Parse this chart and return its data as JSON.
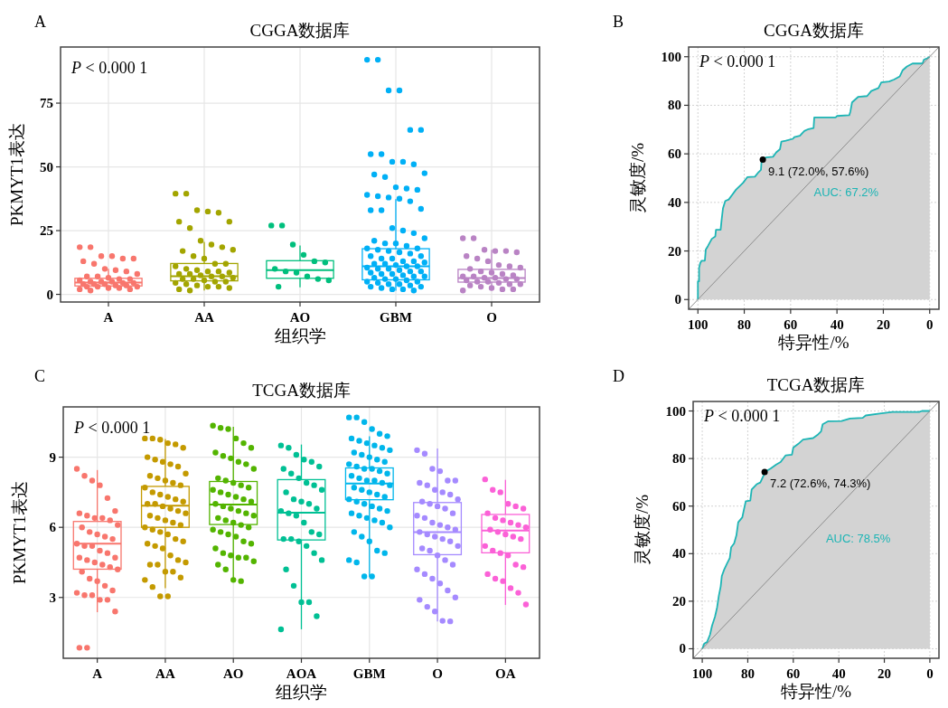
{
  "chart_data": [
    {
      "type": "box",
      "title": "CGGA数据库",
      "xlabel": "组织学",
      "ylabel": "PKMYT1表达",
      "categories": [
        "A",
        "AA",
        "AO",
        "GBM",
        "O"
      ],
      "colors": [
        "#F8766D",
        "#A3A500",
        "#00BF7D",
        "#00B0F6",
        "#B983C4"
      ],
      "boxes": [
        {
          "low": 1.5,
          "q1": 3.3,
          "median": 4.6,
          "q3": 6.3,
          "high": 10
        },
        {
          "low": 1.5,
          "q1": 5.3,
          "median": 7.1,
          "q3": 12.1,
          "high": 20.6
        },
        {
          "low": 2.8,
          "q1": 6.3,
          "median": 9.5,
          "q3": 13.2,
          "high": 19.2
        },
        {
          "low": 1.4,
          "q1": 5.7,
          "median": 11,
          "q3": 17.9,
          "high": 37.3
        },
        {
          "low": 1.5,
          "q1": 4.8,
          "median": 6.4,
          "q3": 9.8,
          "high": 17.5
        }
      ],
      "ylim": [
        -3,
        97
      ],
      "yticks": [
        0,
        25,
        50,
        75
      ],
      "grid": true,
      "annotations": [
        "A",
        "P < 0.000 1"
      ],
      "series": [
        {
          "type": "scatter",
          "color": "#F8766D",
          "x": [
            "A",
            "A",
            "A",
            "A",
            "A",
            "A",
            "A",
            "A",
            "A",
            "A",
            "A",
            "A",
            "A",
            "A",
            "A",
            "A",
            "A",
            "A",
            "A",
            "A",
            "A",
            "A",
            "A",
            "A",
            "A",
            "A",
            "A",
            "A",
            "A",
            "A",
            "A",
            "A",
            "A",
            "A",
            "A",
            "A"
          ],
          "values": [
            18.5,
            18.5,
            15,
            15,
            14,
            14,
            13,
            12,
            10,
            9.5,
            9,
            8,
            7,
            7,
            6.5,
            6,
            6,
            5.5,
            5,
            5,
            5,
            4.5,
            4.5,
            4,
            4,
            4,
            3.5,
            3.5,
            3,
            3,
            3,
            2.5,
            2.5,
            2,
            2,
            1.5
          ]
        },
        {
          "type": "scatter",
          "color": "#A3A500",
          "x": [
            "AA",
            "AA",
            "AA",
            "AA",
            "AA",
            "AA",
            "AA",
            "AA",
            "AA",
            "AA",
            "AA",
            "AA",
            "AA",
            "AA",
            "AA",
            "AA",
            "AA",
            "AA",
            "AA",
            "AA",
            "AA",
            "AA",
            "AA",
            "AA",
            "AA",
            "AA",
            "AA",
            "AA",
            "AA",
            "AA",
            "AA",
            "AA",
            "AA",
            "AA",
            "AA",
            "AA",
            "AA",
            "AA",
            "AA",
            "AA",
            "AA",
            "AA"
          ],
          "values": [
            39.5,
            39.5,
            33,
            32.5,
            32,
            28.5,
            28.5,
            26,
            21,
            19.5,
            18.5,
            17.5,
            17,
            15,
            14,
            12,
            12,
            11,
            10,
            9.5,
            9,
            9,
            8.5,
            8,
            8,
            7.5,
            7,
            7,
            6.5,
            6,
            6,
            5.5,
            5,
            5,
            4.5,
            4,
            3.5,
            3,
            3,
            2.5,
            2,
            1.5
          ]
        },
        {
          "type": "scatter",
          "color": "#00BF7D",
          "x": [
            "AO",
            "AO",
            "AO",
            "AO",
            "AO",
            "AO",
            "AO",
            "AO",
            "AO",
            "AO",
            "AO",
            "AO",
            "AO"
          ],
          "values": [
            27,
            27,
            19.5,
            15.5,
            13,
            12.5,
            10,
            9,
            8.5,
            7,
            6,
            5.5,
            3
          ]
        },
        {
          "type": "scatter",
          "color": "#00B0F6",
          "x": [
            "GBM",
            "GBM",
            "GBM",
            "GBM",
            "GBM",
            "GBM",
            "GBM",
            "GBM",
            "GBM",
            "GBM",
            "GBM",
            "GBM",
            "GBM",
            "GBM",
            "GBM",
            "GBM",
            "GBM",
            "GBM",
            "GBM",
            "GBM",
            "GBM",
            "GBM",
            "GBM",
            "GBM",
            "GBM",
            "GBM",
            "GBM",
            "GBM",
            "GBM",
            "GBM",
            "GBM",
            "GBM",
            "GBM",
            "GBM",
            "GBM",
            "GBM",
            "GBM",
            "GBM",
            "GBM",
            "GBM",
            "GBM",
            "GBM",
            "GBM",
            "GBM",
            "GBM",
            "GBM",
            "GBM",
            "GBM",
            "GBM",
            "GBM",
            "GBM",
            "GBM",
            "GBM",
            "GBM",
            "GBM",
            "GBM",
            "GBM",
            "GBM",
            "GBM",
            "GBM",
            "GBM",
            "GBM",
            "GBM",
            "GBM",
            "GBM",
            "GBM",
            "GBM",
            "GBM",
            "GBM",
            "GBM",
            "GBM",
            "GBM",
            "GBM",
            "GBM",
            "GBM",
            "GBM",
            "GBM",
            "GBM",
            "GBM"
          ],
          "values": [
            92,
            92,
            80,
            80,
            64.5,
            64.5,
            55,
            55,
            52,
            52,
            51,
            47.5,
            47,
            46,
            42,
            41.5,
            41,
            39,
            38.5,
            38,
            37.5,
            36.5,
            33.5,
            33,
            33,
            26,
            25,
            24,
            22,
            21,
            20,
            20,
            19,
            18,
            18,
            17.5,
            17,
            16.5,
            16,
            15,
            15,
            14,
            14,
            13,
            13,
            12.5,
            12,
            12,
            11.5,
            11,
            11,
            10.5,
            10,
            10,
            9.5,
            9,
            9,
            8.5,
            8,
            8,
            7.5,
            7,
            7,
            6.5,
            6,
            6,
            5.5,
            5,
            5,
            4.5,
            4,
            4,
            3.5,
            3,
            3,
            2.5,
            2,
            2,
            1.5
          ]
        },
        {
          "type": "scatter",
          "color": "#B983C4",
          "x": [
            "O",
            "O",
            "O",
            "O",
            "O",
            "O",
            "O",
            "O",
            "O",
            "O",
            "O",
            "O",
            "O",
            "O",
            "O",
            "O",
            "O",
            "O",
            "O",
            "O",
            "O",
            "O",
            "O",
            "O",
            "O",
            "O",
            "O",
            "O",
            "O",
            "O",
            "O",
            "O",
            "O",
            "O",
            "O"
          ],
          "values": [
            22,
            22,
            17.5,
            17,
            17,
            16.5,
            15,
            14,
            13,
            11.5,
            11,
            10.5,
            10,
            9,
            8.5,
            8,
            7.5,
            7,
            7,
            6.5,
            6.5,
            6,
            6,
            5.5,
            5,
            5,
            4.5,
            4,
            4,
            3.5,
            3,
            2.5,
            2,
            2,
            1.5
          ]
        }
      ]
    },
    {
      "type": "area",
      "title": "CGGA数据库",
      "xlabel": "特异性/%",
      "ylabel": "灵敏度/%",
      "xlim": [
        104,
        -4
      ],
      "ylim": [
        -4,
        104
      ],
      "xticks": [
        100,
        80,
        60,
        40,
        20,
        0
      ],
      "yticks": [
        0,
        20,
        40,
        60,
        80,
        100
      ],
      "grid": true,
      "annotations": [
        "B",
        "P < 0.000 1",
        "AUC: 67.2%",
        {
          "text": "9.1 (72.0%, 57.6%)",
          "x": 72.0,
          "y": 57.6
        }
      ],
      "series": [
        {
          "type": "area",
          "color": "#1DB5B5",
          "x": [
            100,
            100,
            99.5,
            99.5,
            99,
            98.4,
            97,
            96.6,
            95.7,
            94,
            92.5,
            92.2,
            90.2,
            89.8,
            89.2,
            88.2,
            86.7,
            85,
            83.6,
            81.8,
            80.5,
            78.7,
            75.4,
            73.8,
            72.8,
            72.6,
            72,
            70.7,
            67.6,
            66.2,
            64.6,
            64,
            62.1,
            59,
            58.4,
            56,
            54.1,
            52.3,
            50.1,
            49.8,
            40.6,
            40,
            34.7,
            34.2,
            33.5,
            30.8,
            27,
            25.2,
            22.1,
            20.9,
            17.5,
            15.4,
            12.9,
            11.7,
            9.8,
            7.4,
            3.1,
            2.5,
            0.9,
            0
          ],
          "values": [
            0,
            7.5,
            7.5,
            13,
            15,
            16,
            16,
            20.6,
            22,
            25,
            26,
            28.7,
            28.7,
            32.5,
            37.5,
            40.6,
            41.2,
            43.4,
            45.2,
            46.9,
            48.1,
            50.4,
            50.6,
            52.5,
            53.4,
            56.2,
            57.6,
            58.5,
            58.8,
            60.6,
            61.9,
            65,
            65.4,
            66.2,
            66.9,
            67.5,
            69.4,
            70.2,
            70.6,
            75,
            75,
            75.6,
            75.9,
            77.5,
            81.2,
            83.5,
            83.8,
            85.9,
            87.1,
            89.4,
            89.8,
            90.6,
            91.9,
            94.4,
            96,
            97.2,
            97.2,
            98.8,
            99.4,
            100
          ]
        },
        {
          "type": "line",
          "color": "#8C8C8C",
          "x": [
            104,
            -4
          ],
          "values": [
            -4,
            104
          ]
        },
        {
          "type": "scatter",
          "color": "#000000",
          "x": [
            72.0
          ],
          "values": [
            57.6
          ]
        }
      ]
    },
    {
      "type": "box",
      "title": "TCGA数据库",
      "xlabel": "组织学",
      "ylabel": "PKMYT1表达",
      "categories": [
        "A",
        "AA",
        "AO",
        "AOA",
        "GBM",
        "O",
        "OA"
      ],
      "colors": [
        "#F8766D",
        "#C49A00",
        "#53B400",
        "#00C094",
        "#00B6EB",
        "#A58AFF",
        "#FB61D7"
      ],
      "boxes": [
        {
          "low": 2.37,
          "q1": 4.21,
          "median": 5.3,
          "q3": 6.25,
          "high": 8.45
        },
        {
          "low": 3.4,
          "q1": 6.0,
          "median": 6.93,
          "q3": 7.75,
          "high": 9.78
        },
        {
          "low": 3.7,
          "q1": 6.12,
          "median": 6.97,
          "q3": 7.96,
          "high": 10.3
        },
        {
          "low": 1.64,
          "q1": 5.46,
          "median": 6.63,
          "q3": 8.04,
          "high": 9.54
        },
        {
          "low": 3.88,
          "q1": 7.18,
          "median": 7.87,
          "q3": 8.54,
          "high": 9.89
        },
        {
          "low": 1.98,
          "q1": 4.83,
          "median": 5.79,
          "q3": 7.06,
          "high": 9.37
        },
        {
          "low": 2.68,
          "q1": 4.91,
          "median": 5.86,
          "q3": 6.55,
          "high": 8.03
        }
      ],
      "ylim": [
        0.4,
        11.15
      ],
      "yticks": [
        3,
        6,
        9
      ],
      "grid": true,
      "annotations": [
        "C",
        "P < 0.000 1"
      ],
      "series": [
        {
          "type": "scatter",
          "color": "#F8766D",
          "x": [
            "A",
            "A",
            "A",
            "A",
            "A",
            "A",
            "A",
            "A",
            "A",
            "A",
            "A",
            "A",
            "A",
            "A",
            "A",
            "A",
            "A",
            "A",
            "A",
            "A",
            "A",
            "A",
            "A",
            "A",
            "A",
            "A",
            "A",
            "A",
            "A",
            "A",
            "A",
            "A",
            "A",
            "A",
            "A",
            "A",
            "A",
            "A",
            "A",
            "A",
            "A",
            "A"
          ],
          "values": [
            8.5,
            8.2,
            8,
            7.8,
            7.25,
            6.7,
            6.6,
            6.5,
            6.4,
            6.4,
            6.3,
            6.1,
            6.0,
            5.8,
            5.7,
            5.6,
            5.5,
            5.3,
            5.2,
            5.2,
            5.0,
            4.9,
            4.7,
            4.7,
            4.6,
            4.5,
            4.4,
            4.3,
            4.2,
            4.1,
            3.8,
            3.7,
            3.5,
            3.3,
            3.2,
            3.1,
            3.1,
            2.9,
            2.9,
            2.4,
            0.85,
            0.85
          ]
        },
        {
          "type": "scatter",
          "color": "#C49A00",
          "x": [
            "AA",
            "AA",
            "AA",
            "AA",
            "AA",
            "AA",
            "AA",
            "AA",
            "AA",
            "AA",
            "AA",
            "AA",
            "AA",
            "AA",
            "AA",
            "AA",
            "AA",
            "AA",
            "AA",
            "AA",
            "AA",
            "AA",
            "AA",
            "AA",
            "AA",
            "AA",
            "AA",
            "AA",
            "AA",
            "AA",
            "AA",
            "AA",
            "AA",
            "AA",
            "AA",
            "AA",
            "AA",
            "AA",
            "AA",
            "AA",
            "AA",
            "AA",
            "AA",
            "AA",
            "AA",
            "AA",
            "AA",
            "AA",
            "AA",
            "AA",
            "AA",
            "AA",
            "AA",
            "AA",
            "AA"
          ],
          "values": [
            9.8,
            9.8,
            9.75,
            9.6,
            9.55,
            9.4,
            9.0,
            8.9,
            8.8,
            8.7,
            8.6,
            8.3,
            8.2,
            8.1,
            8.0,
            7.9,
            7.8,
            7.7,
            7.5,
            7.4,
            7.3,
            7.2,
            7.1,
            7.0,
            7.0,
            6.9,
            6.8,
            6.7,
            6.6,
            6.5,
            6.4,
            6.3,
            6.2,
            6.1,
            6.0,
            5.9,
            5.8,
            5.7,
            5.5,
            5.4,
            5.3,
            5.2,
            5.1,
            4.8,
            4.6,
            4.5,
            4.4,
            4.4,
            4.1,
            4.1,
            3.85,
            3.75,
            3.45,
            3.05,
            3.05
          ]
        },
        {
          "type": "scatter",
          "color": "#53B400",
          "x": [
            "AO",
            "AO",
            "AO",
            "AO",
            "AO",
            "AO",
            "AO",
            "AO",
            "AO",
            "AO",
            "AO",
            "AO",
            "AO",
            "AO",
            "AO",
            "AO",
            "AO",
            "AO",
            "AO",
            "AO",
            "AO",
            "AO",
            "AO",
            "AO",
            "AO",
            "AO",
            "AO",
            "AO",
            "AO",
            "AO",
            "AO",
            "AO",
            "AO",
            "AO",
            "AO",
            "AO",
            "AO",
            "AO",
            "AO",
            "AO",
            "AO",
            "AO",
            "AO",
            "AO",
            "AO",
            "AO",
            "AO",
            "AO",
            "AO",
            "AO"
          ],
          "values": [
            10.35,
            10.25,
            10.2,
            9.8,
            9.6,
            9.4,
            9.2,
            9.05,
            8.95,
            8.8,
            8.7,
            8.5,
            8.1,
            8.0,
            7.9,
            7.8,
            7.7,
            7.6,
            7.5,
            7.4,
            7.3,
            7.2,
            7.1,
            7.0,
            6.9,
            6.8,
            6.7,
            6.6,
            6.5,
            6.4,
            6.3,
            6.2,
            6.1,
            6.0,
            5.9,
            5.8,
            5.7,
            5.6,
            5.4,
            5.3,
            5.1,
            4.9,
            4.8,
            4.7,
            4.7,
            4.55,
            4.4,
            4.2,
            3.75,
            3.7
          ]
        },
        {
          "type": "scatter",
          "color": "#00C094",
          "x": [
            "AOA",
            "AOA",
            "AOA",
            "AOA",
            "AOA",
            "AOA",
            "AOA",
            "AOA",
            "AOA",
            "AOA",
            "AOA",
            "AOA",
            "AOA",
            "AOA",
            "AOA",
            "AOA",
            "AOA",
            "AOA",
            "AOA",
            "AOA",
            "AOA",
            "AOA",
            "AOA",
            "AOA",
            "AOA",
            "AOA",
            "AOA",
            "AOA",
            "AOA",
            "AOA",
            "AOA",
            "AOA",
            "AOA",
            "AOA",
            "AOA"
          ],
          "values": [
            9.5,
            9.4,
            9.1,
            8.9,
            8.8,
            8.6,
            8.5,
            8.3,
            8.1,
            7.9,
            7.8,
            7.6,
            7.5,
            7.2,
            7.1,
            7.0,
            6.8,
            6.7,
            6.6,
            6.5,
            6.2,
            5.8,
            5.7,
            5.5,
            5.5,
            5.4,
            5.2,
            4.9,
            4.6,
            4.2,
            3.5,
            2.8,
            2.8,
            2.2,
            1.64
          ]
        },
        {
          "type": "scatter",
          "color": "#00B6EB",
          "x": [
            "GBM",
            "GBM",
            "GBM",
            "GBM",
            "GBM",
            "GBM",
            "GBM",
            "GBM",
            "GBM",
            "GBM",
            "GBM",
            "GBM",
            "GBM",
            "GBM",
            "GBM",
            "GBM",
            "GBM",
            "GBM",
            "GBM",
            "GBM",
            "GBM",
            "GBM",
            "GBM",
            "GBM",
            "GBM",
            "GBM",
            "GBM",
            "GBM",
            "GBM",
            "GBM",
            "GBM",
            "GBM",
            "GBM",
            "GBM",
            "GBM",
            "GBM",
            "GBM",
            "GBM",
            "GBM",
            "GBM",
            "GBM",
            "GBM",
            "GBM",
            "GBM",
            "GBM",
            "GBM",
            "GBM",
            "GBM",
            "GBM",
            "GBM",
            "GBM",
            "GBM",
            "GBM",
            "GBM",
            "GBM"
          ],
          "values": [
            10.7,
            10.7,
            10.5,
            10.2,
            10.0,
            9.9,
            9.8,
            9.7,
            9.6,
            9.5,
            9.4,
            9.3,
            9.2,
            9.1,
            9.0,
            8.9,
            8.8,
            8.7,
            8.6,
            8.5,
            8.5,
            8.4,
            8.3,
            8.2,
            8.1,
            8.0,
            8.0,
            7.9,
            7.8,
            7.7,
            7.6,
            7.5,
            7.4,
            7.3,
            7.2,
            7.1,
            7.0,
            6.9,
            6.8,
            6.7,
            6.6,
            6.5,
            6.4,
            6.3,
            6.2,
            6.0,
            5.8,
            5.6,
            5.4,
            5.0,
            4.9,
            4.6,
            4.5,
            3.9,
            3.9
          ]
        },
        {
          "type": "scatter",
          "color": "#A58AFF",
          "x": [
            "O",
            "O",
            "O",
            "O",
            "O",
            "O",
            "O",
            "O",
            "O",
            "O",
            "O",
            "O",
            "O",
            "O",
            "O",
            "O",
            "O",
            "O",
            "O",
            "O",
            "O",
            "O",
            "O",
            "O",
            "O",
            "O",
            "O",
            "O",
            "O",
            "O",
            "O",
            "O",
            "O",
            "O",
            "O",
            "O",
            "O",
            "O",
            "O",
            "O",
            "O",
            "O",
            "O",
            "O",
            "O"
          ],
          "values": [
            9.3,
            9.15,
            8.5,
            8.4,
            8.0,
            8.0,
            7.9,
            7.8,
            7.6,
            7.5,
            7.4,
            7.2,
            7.1,
            7.0,
            6.9,
            6.8,
            6.6,
            6.5,
            6.4,
            6.2,
            6.1,
            6.0,
            5.9,
            5.8,
            5.7,
            5.6,
            5.5,
            5.4,
            5.2,
            5.1,
            5.0,
            4.8,
            4.6,
            4.4,
            4.2,
            4.0,
            3.8,
            3.6,
            3.3,
            3.0,
            2.9,
            2.6,
            2.4,
            2.0,
            1.98
          ]
        },
        {
          "type": "scatter",
          "color": "#FB61D7",
          "x": [
            "OA",
            "OA",
            "OA",
            "OA",
            "OA",
            "OA",
            "OA",
            "OA",
            "OA",
            "OA",
            "OA",
            "OA",
            "OA",
            "OA",
            "OA",
            "OA",
            "OA",
            "OA",
            "OA",
            "OA",
            "OA",
            "OA",
            "OA",
            "OA",
            "OA",
            "OA",
            "OA",
            "OA",
            "OA"
          ],
          "values": [
            8.05,
            7.6,
            7.5,
            7.0,
            6.9,
            6.8,
            6.6,
            6.4,
            6.3,
            6.2,
            6.1,
            6.0,
            5.9,
            5.8,
            5.7,
            5.6,
            5.5,
            5.2,
            5.0,
            4.9,
            4.8,
            4.4,
            4.3,
            4.0,
            3.8,
            3.7,
            3.4,
            3.2,
            2.7
          ]
        }
      ]
    },
    {
      "type": "area",
      "title": "TCGA数据库",
      "xlabel": "特异性/%",
      "ylabel": "灵敏度/%",
      "xlim": [
        104,
        -4
      ],
      "ylim": [
        -4,
        104
      ],
      "xticks": [
        100,
        80,
        60,
        40,
        20,
        0
      ],
      "yticks": [
        0,
        20,
        40,
        60,
        80,
        100
      ],
      "grid": true,
      "annotations": [
        "D",
        "P < 0.000 1",
        "AUC: 78.5%",
        {
          "text": "7.2 (72.6%, 74.3%)",
          "x": 72.6,
          "y": 74.3
        }
      ],
      "series": [
        {
          "type": "area",
          "color": "#1DB5B5",
          "x": [
            100,
            99.1,
            97.9,
            96.6,
            95.7,
            94.4,
            93.5,
            92.7,
            91.9,
            91.4,
            90.4,
            89.2,
            87.9,
            87.3,
            86,
            85,
            84.2,
            82.4,
            81.7,
            80.9,
            78.9,
            78.3,
            76.1,
            74.5,
            73,
            72.6,
            70,
            67.5,
            65.6,
            63.4,
            60.6,
            60,
            57.9,
            55.7,
            51.3,
            49.4,
            47.8,
            47.1,
            44.6,
            38.8,
            35.1,
            29.5,
            28.2,
            22.1,
            16.5,
            4.7,
            3.5,
            0
          ],
          "values": [
            0,
            2.2,
            2.8,
            5.9,
            9.7,
            13.5,
            17.3,
            22.4,
            26.2,
            30.6,
            33.2,
            35.7,
            38.2,
            42.7,
            44.3,
            47.7,
            53.2,
            55.3,
            58.5,
            62,
            62.3,
            67,
            69.2,
            69.9,
            73,
            74.3,
            75.8,
            77.5,
            78.5,
            81.3,
            81.6,
            84.6,
            86.1,
            88,
            88.6,
            89.9,
            91.4,
            94.4,
            95.7,
            95.8,
            96.8,
            97.1,
            98.1,
            98.9,
            99.6,
            99.6,
            100,
            100
          ]
        },
        {
          "type": "line",
          "color": "#8C8C8C",
          "x": [
            104,
            -4
          ],
          "values": [
            -4,
            104
          ]
        },
        {
          "type": "scatter",
          "color": "#000000",
          "x": [
            72.6
          ],
          "values": [
            74.3
          ]
        }
      ]
    }
  ]
}
